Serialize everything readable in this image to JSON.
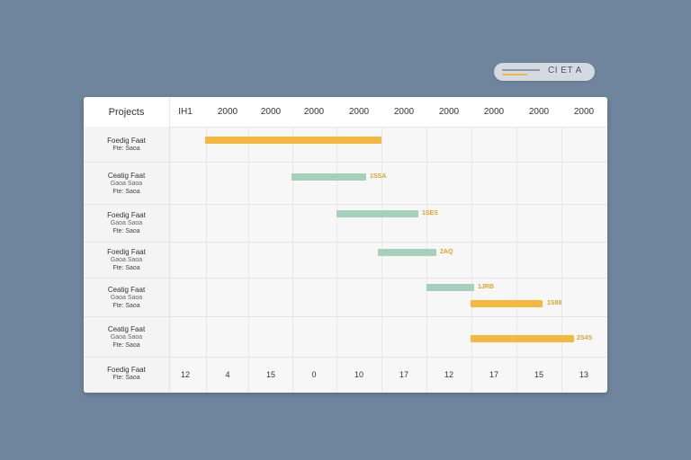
{
  "legend": {
    "label": "CI ET A"
  },
  "table": {
    "title": "Projects",
    "columns": [
      "IH1",
      "2000",
      "2000",
      "2000",
      "2000",
      "2000",
      "2000",
      "2000",
      "2000",
      "2000"
    ],
    "rows": [
      {
        "l1": "Foedig Faat",
        "l2": "",
        "l3": "Fte: Saoa"
      },
      {
        "l1": "Ceatig Faat",
        "l2": "Gaoa Saoa",
        "l3": "Fte: Saoa"
      },
      {
        "l1": "Foedig Faat",
        "l2": "Gaoa Saoa",
        "l3": "Fte: Saoa"
      },
      {
        "l1": "Foedig Faat",
        "l2": "Gaoa Saoa",
        "l3": "Fte: Saoa"
      },
      {
        "l1": "Ceatig Faat",
        "l2": "Gaoa Saoa",
        "l3": "Fte: Saoa"
      },
      {
        "l1": "Ceatig Faat",
        "l2": "Gaoa Saoa",
        "l3": "Fte: Saoa"
      },
      {
        "l1": "Foedig Faat",
        "l2": "",
        "l3": "Fte: Saoa"
      }
    ],
    "bar_labels": [
      "1SSA",
      "1SES",
      "2AQ",
      "1JRB",
      "1S88",
      "2S4S"
    ],
    "footer": [
      "12",
      "4",
      "15",
      "0",
      "10",
      "17",
      "12",
      "17",
      "15",
      "13"
    ]
  },
  "colors": {
    "accent_yellow": "#f4b83f",
    "accent_green": "#a5d1bb",
    "background": "#6f849d"
  }
}
